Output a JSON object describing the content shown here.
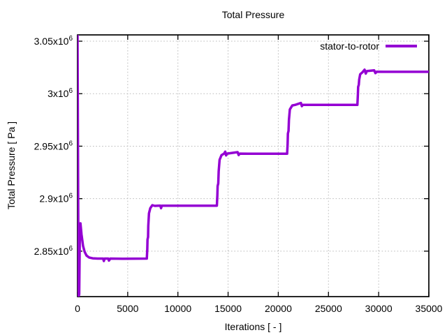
{
  "window": {
    "background": "#ffffff"
  },
  "chart_data": {
    "type": "line",
    "title": "Total Pressure",
    "xlabel": "Iterations [ - ]",
    "ylabel": "Total Pressure [ Pa ]",
    "xlim": [
      0,
      35000
    ],
    "ylim": [
      2806700,
      3056000
    ],
    "grid": "dotted",
    "legend_position": "top-right-inside",
    "colors": {
      "line": "#9400d3",
      "text": "#000000",
      "grid": "#bbbbbb",
      "border": "#000000"
    },
    "xticks": {
      "values": [
        0,
        5000,
        10000,
        15000,
        20000,
        25000,
        30000,
        35000
      ],
      "labels": [
        "0",
        "5000",
        "10000",
        "15000",
        "20000",
        "25000",
        "30000",
        "35000"
      ]
    },
    "yticks": {
      "values": [
        2850000,
        2900000,
        2950000,
        3000000,
        3050000
      ],
      "labels": [
        {
          "base": "2.85x10",
          "exp": "6"
        },
        {
          "base": "2.9x10",
          "exp": "6"
        },
        {
          "base": "2.95x10",
          "exp": "6"
        },
        {
          "base": "3x10",
          "exp": "6"
        },
        {
          "base": "3.05x10",
          "exp": "6"
        }
      ]
    },
    "series": [
      {
        "name": "stator-to-rotor",
        "color": "#9400d3",
        "points": [
          [
            0,
            3056000
          ],
          [
            60,
            2900000
          ],
          [
            110,
            2807000
          ],
          [
            170,
            2809000
          ],
          [
            240,
            2872000
          ],
          [
            290,
            2876500
          ],
          [
            400,
            2866000
          ],
          [
            550,
            2855000
          ],
          [
            700,
            2849500
          ],
          [
            900,
            2845800
          ],
          [
            1150,
            2844000
          ],
          [
            1500,
            2843200
          ],
          [
            2000,
            2842900
          ],
          [
            2550,
            2842900
          ],
          [
            2620,
            2840600
          ],
          [
            2700,
            2842900
          ],
          [
            3060,
            2842900
          ],
          [
            3130,
            2841000
          ],
          [
            3260,
            2842900
          ],
          [
            4500,
            2842800
          ],
          [
            6900,
            2842900
          ],
          [
            6950,
            2852000
          ],
          [
            6970,
            2861000
          ],
          [
            7030,
            2863500
          ],
          [
            7050,
            2874000
          ],
          [
            7120,
            2886000
          ],
          [
            7250,
            2891000
          ],
          [
            7450,
            2893800
          ],
          [
            7700,
            2893100
          ],
          [
            8000,
            2893300
          ],
          [
            8250,
            2893400
          ],
          [
            8320,
            2890900
          ],
          [
            8400,
            2893300
          ],
          [
            9000,
            2893300
          ],
          [
            13880,
            2893300
          ],
          [
            13930,
            2903000
          ],
          [
            13960,
            2912000
          ],
          [
            14020,
            2914500
          ],
          [
            14060,
            2926000
          ],
          [
            14150,
            2937000
          ],
          [
            14350,
            2941500
          ],
          [
            14600,
            2942900
          ],
          [
            14720,
            2944800
          ],
          [
            14800,
            2941200
          ],
          [
            14900,
            2942900
          ],
          [
            15950,
            2944300
          ],
          [
            16050,
            2941500
          ],
          [
            16150,
            2942900
          ],
          [
            17000,
            2942800
          ],
          [
            20880,
            2942800
          ],
          [
            20930,
            2952000
          ],
          [
            20960,
            2962000
          ],
          [
            21020,
            2964500
          ],
          [
            21060,
            2975000
          ],
          [
            21150,
            2985000
          ],
          [
            21400,
            2988800
          ],
          [
            21700,
            2989400
          ],
          [
            22250,
            2991200
          ],
          [
            22350,
            2988100
          ],
          [
            22450,
            2989400
          ],
          [
            23000,
            2989300
          ],
          [
            27880,
            2989300
          ],
          [
            27930,
            2999000
          ],
          [
            27960,
            3006500
          ],
          [
            28020,
            3008500
          ],
          [
            28060,
            3013500
          ],
          [
            28160,
            3018500
          ],
          [
            28400,
            3020500
          ],
          [
            28600,
            3022800
          ],
          [
            28720,
            3019200
          ],
          [
            28820,
            3021500
          ],
          [
            29550,
            3022300
          ],
          [
            29680,
            3019600
          ],
          [
            29800,
            3020900
          ],
          [
            30500,
            3020800
          ],
          [
            35000,
            3020800
          ]
        ]
      }
    ]
  }
}
